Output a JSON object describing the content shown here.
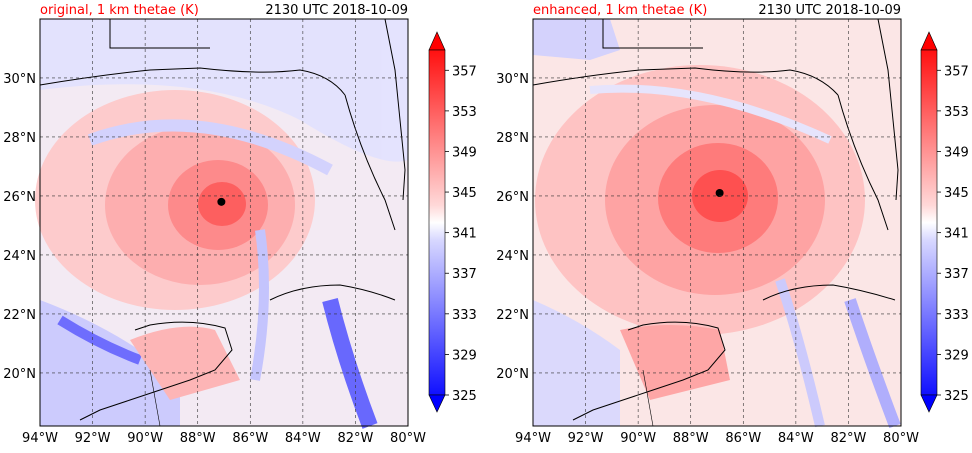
{
  "chart_data": [
    {
      "type": "heatmap",
      "title_left": "original, 1 km thetae (K)",
      "title_right": "2130 UTC 2018-10-09",
      "x_ticks": [
        "94°W",
        "92°W",
        "90°W",
        "88°W",
        "86°W",
        "84°W",
        "82°W",
        "80°W"
      ],
      "x_tick_values": [
        -94,
        -92,
        -90,
        -88,
        -86,
        -84,
        -82,
        -80
      ],
      "y_ticks": [
        "20°N",
        "22°N",
        "24°N",
        "26°N",
        "28°N",
        "30°N"
      ],
      "y_tick_values": [
        20,
        22,
        24,
        26,
        28,
        30
      ],
      "xlim": [
        -94,
        -80
      ],
      "ylim": [
        18.2,
        32.0
      ],
      "storm_center": {
        "lon": -87.1,
        "lat": 25.8
      },
      "colorbar": {
        "ticks": [
          "325",
          "329",
          "333",
          "337",
          "341",
          "345",
          "349",
          "353",
          "357"
        ],
        "tick_values": [
          325,
          329,
          333,
          337,
          341,
          345,
          349,
          353,
          357
        ],
        "range": [
          325,
          359
        ],
        "extend": "both"
      },
      "grid": true
    },
    {
      "type": "heatmap",
      "title_left": "enhanced, 1 km thetae (K)",
      "title_right": "2130 UTC 2018-10-09",
      "x_ticks": [
        "94°W",
        "92°W",
        "90°W",
        "88°W",
        "86°W",
        "84°W",
        "82°W",
        "80°W"
      ],
      "x_tick_values": [
        -94,
        -92,
        -90,
        -88,
        -86,
        -84,
        -82,
        -80
      ],
      "y_ticks": [
        "20°N",
        "22°N",
        "24°N",
        "26°N",
        "28°N",
        "30°N"
      ],
      "y_tick_values": [
        20,
        22,
        24,
        26,
        28,
        30
      ],
      "xlim": [
        -94,
        -80
      ],
      "ylim": [
        18.2,
        32.0
      ],
      "storm_center": {
        "lon": -86.9,
        "lat": 26.1
      },
      "colorbar": {
        "ticks": [
          "325",
          "329",
          "333",
          "337",
          "341",
          "345",
          "349",
          "353",
          "357"
        ],
        "tick_values": [
          325,
          329,
          333,
          337,
          341,
          345,
          349,
          353,
          357
        ],
        "range": [
          325,
          359
        ],
        "extend": "both"
      },
      "grid": true
    }
  ],
  "colors": {
    "title_left": "#ff0000",
    "title_right": "#000000",
    "cold": "#0000ff",
    "neutral": "#ffffff",
    "warm": "#ff0000"
  }
}
